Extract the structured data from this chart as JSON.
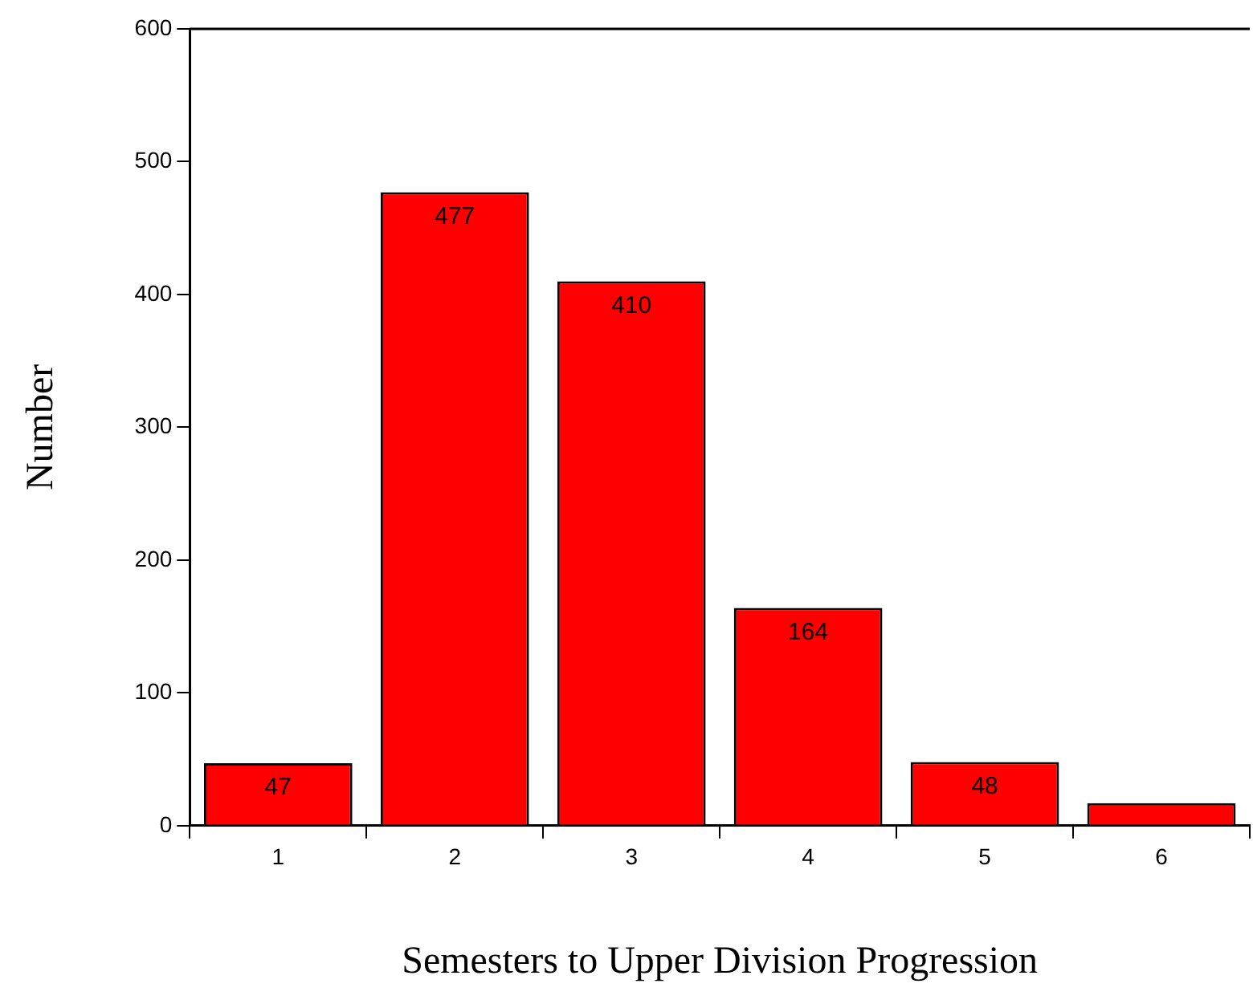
{
  "chart_data": {
    "type": "bar",
    "xlabel": "Semesters to Upper Division Progression",
    "ylabel": "Number",
    "categories": [
      "1",
      "2",
      "3",
      "4",
      "5",
      "6"
    ],
    "values": [
      47,
      477,
      410,
      164,
      48,
      17
    ],
    "value_labels": [
      "47",
      "477",
      "410",
      "164",
      "48",
      null
    ],
    "color": "#ff0000",
    "ylim": [
      0,
      600
    ],
    "yticks": [
      0,
      100,
      200,
      300,
      400,
      500,
      600
    ],
    "grid": false,
    "legend": false
  }
}
